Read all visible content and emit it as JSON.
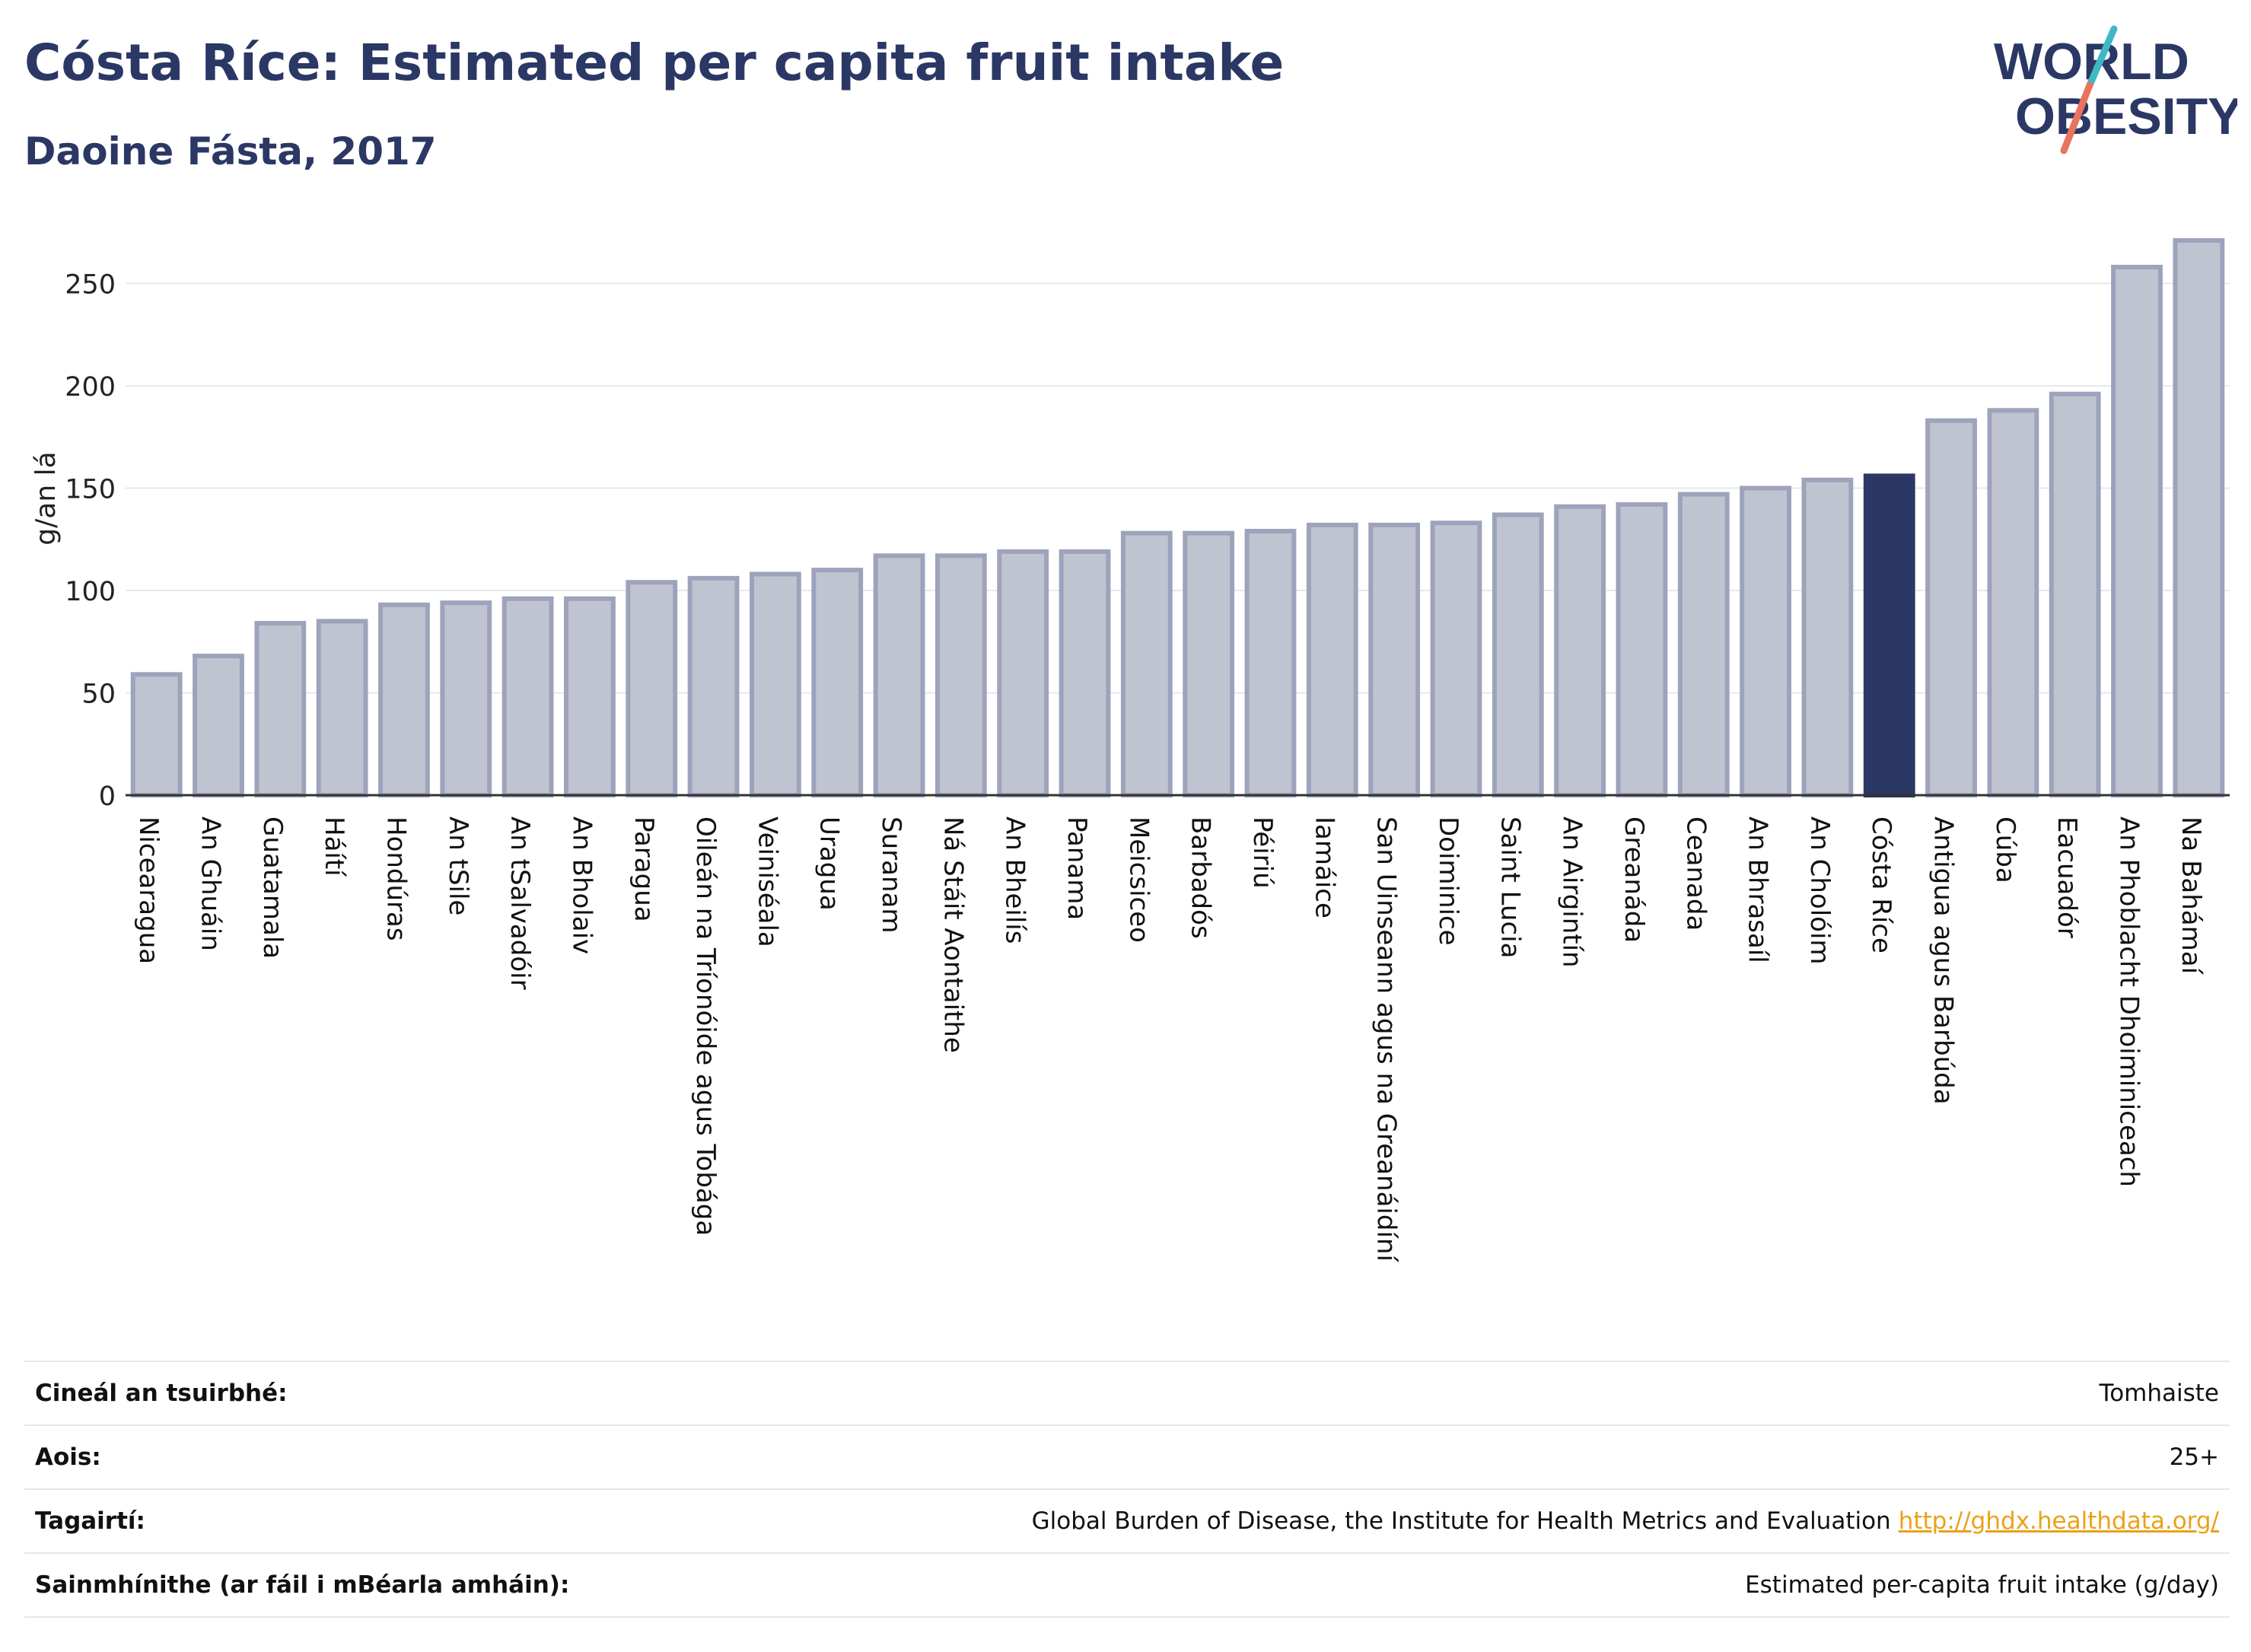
{
  "header": {
    "title": "Cósta Ríce: Estimated per capita fruit intake",
    "subtitle": "Daoine Fásta, 2017"
  },
  "logo": {
    "line1": "WORLD",
    "line2": "OBESITY",
    "text_color": "#2b3764",
    "slash_colors": [
      "#3fb8c4",
      "#e8735f"
    ]
  },
  "chart_data": {
    "type": "bar",
    "ylabel": "g/an lá",
    "ylim": [
      0,
      275
    ],
    "yticks": [
      0,
      50,
      100,
      150,
      200,
      250
    ],
    "grid": true,
    "highlight": "Cósta Ríce",
    "colors": {
      "bar": "#c0c4d0",
      "bar_border": "#9ea3bc",
      "highlight": "#2b3764"
    },
    "categories": [
      "Nicearagua",
      "An Ghuáin",
      "Guatamala",
      "Háítí",
      "Hondúras",
      "An tSile",
      "An tSalvadóir",
      "An Bholaiv",
      "Paragua",
      "Oileán na Tríonóide agus Tobága",
      "Veiniséala",
      "Uragua",
      "Suranam",
      "Ná Stáit Aontaithe",
      "An Bheilís",
      "Panama",
      "Meicsiceo",
      "Barbadós",
      "Péiriú",
      "Iamáice",
      "San Uinseann agus na Greanáidíní",
      "Doiminice",
      "Saint Lucia",
      "An Airgintín",
      "Greanáda",
      "Ceanada",
      "An Bhrasaíl",
      "An Cholóim",
      "Cósta Ríce",
      "Antigua agus Barbúda",
      "Cúba",
      "Eacuadór",
      "An Phoblacht Dhoiminiceach",
      "Na Bahámaí"
    ],
    "values": [
      59,
      68,
      84,
      85,
      93,
      94,
      96,
      96,
      104,
      106,
      108,
      110,
      117,
      117,
      119,
      119,
      128,
      128,
      129,
      132,
      132,
      133,
      137,
      141,
      142,
      147,
      150,
      154,
      156,
      183,
      188,
      196,
      258,
      271
    ]
  },
  "meta": [
    {
      "label": "Cineál an tsuirbhé:",
      "value": "Tomhaiste"
    },
    {
      "label": "Aois:",
      "value": "25+"
    },
    {
      "label": "Tagairtí:",
      "value": "Global Burden of Disease, the Institute for Health Metrics and Evaluation",
      "link": "http://ghdx.healthdata.org/"
    },
    {
      "label": "Sainmhínithe (ar fáil i mBéarla amháin):",
      "value": "Estimated per-capita fruit intake (g/day)"
    }
  ]
}
